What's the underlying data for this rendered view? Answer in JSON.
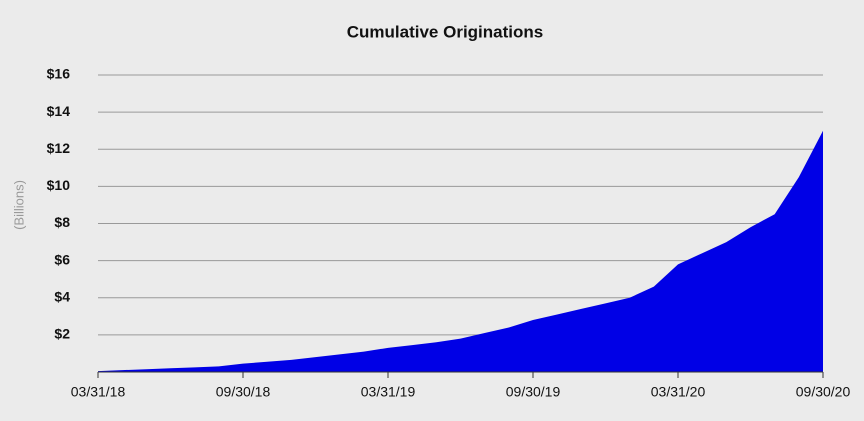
{
  "chart_data": {
    "type": "area",
    "title": "Cumulative Originations",
    "y_label": "(Billions)",
    "categories": [
      "03/31/18",
      null,
      null,
      null,
      null,
      null,
      "09/30/18",
      null,
      null,
      null,
      null,
      null,
      "03/31/19",
      null,
      null,
      null,
      null,
      null,
      "09/30/19",
      null,
      null,
      null,
      null,
      null,
      "03/31/20",
      null,
      null,
      null,
      null,
      null,
      "09/30/20"
    ],
    "values": [
      0.05,
      0.1,
      0.15,
      0.2,
      0.25,
      0.3,
      0.45,
      0.55,
      0.65,
      0.8,
      0.95,
      1.1,
      1.3,
      1.45,
      1.6,
      1.8,
      2.1,
      2.4,
      2.8,
      3.1,
      3.4,
      3.7,
      4.0,
      4.6,
      5.8,
      6.4,
      7.0,
      7.8,
      8.5,
      10.5,
      13.0
    ],
    "color": "#0000e6",
    "ylim": [
      0,
      16
    ],
    "yticks": [
      {
        "value": 2,
        "label": "$2"
      },
      {
        "value": 4,
        "label": "$4"
      },
      {
        "value": 6,
        "label": "$6"
      },
      {
        "value": 8,
        "label": "$8"
      },
      {
        "value": 10,
        "label": "$10"
      },
      {
        "value": 12,
        "label": "$12"
      },
      {
        "value": 14,
        "label": "$14"
      },
      {
        "value": 16,
        "label": "$16"
      }
    ],
    "grid": true
  }
}
